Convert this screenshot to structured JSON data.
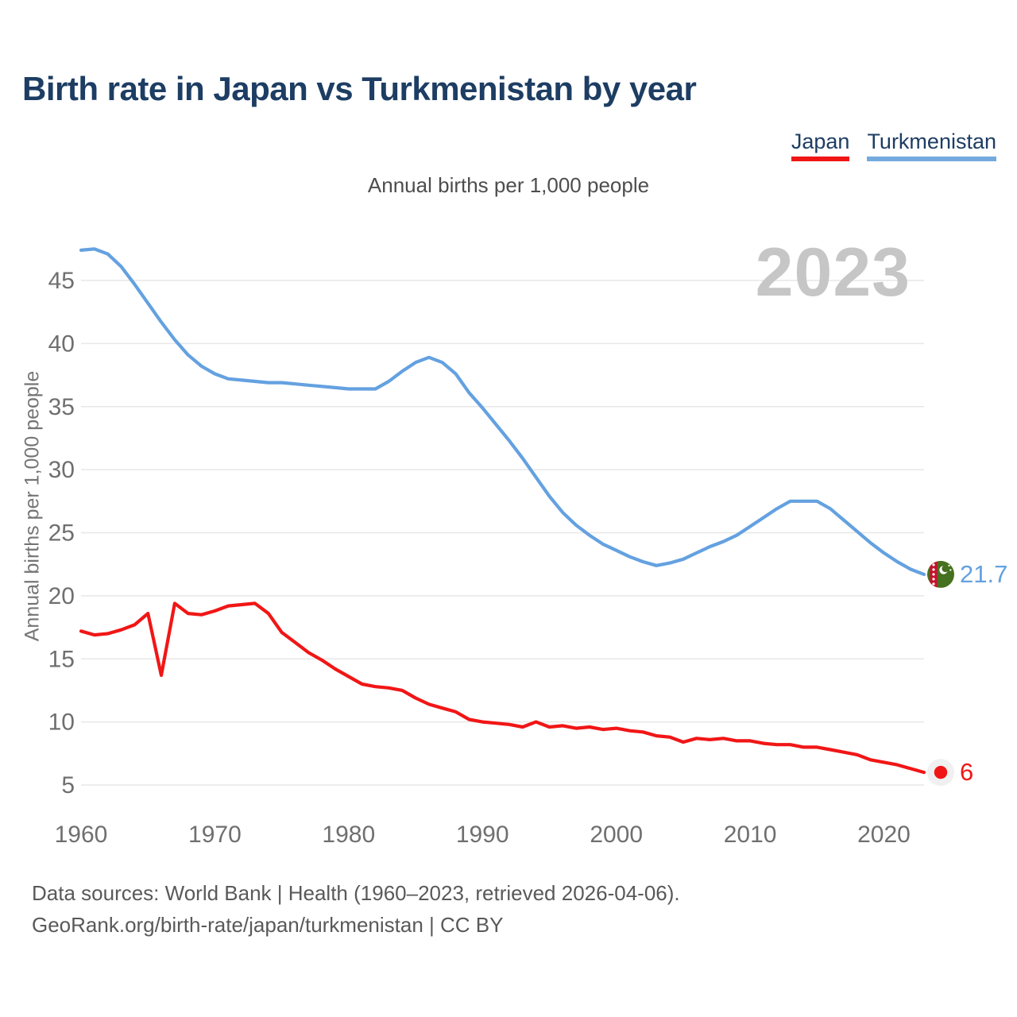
{
  "page": {
    "background": "#ffffff"
  },
  "header": {
    "title": "Birth rate in Japan vs Turkmenistan by year"
  },
  "legend": {
    "items": [
      {
        "label": "Japan",
        "color": "#f11616"
      },
      {
        "label": "Turkmenistan",
        "color": "#74aadd"
      }
    ]
  },
  "subtitle": "Annual births per 1,000 people",
  "watermark": "2023",
  "footer": {
    "line1": "Data sources: World Bank | Health (1960–2023, retrieved 2026-04-06).",
    "line2": "GeoRank.org/birth-rate/japan/turkmenistan | CC BY"
  },
  "chart_data": {
    "type": "line",
    "title": "Birth rate in Japan vs Turkmenistan by year",
    "subtitle": "Annual births per 1,000 people",
    "xlabel": "",
    "ylabel": "Annual births per 1,000 people",
    "ylim": [
      5,
      47.5
    ],
    "grid": "horizontal",
    "legend_position": "top-right",
    "y_ticks": [
      5,
      10,
      15,
      20,
      25,
      30,
      35,
      40,
      45
    ],
    "x_ticks": [
      1960,
      1970,
      1980,
      1990,
      2000,
      2010,
      2020
    ],
    "x": [
      1960,
      1961,
      1962,
      1963,
      1964,
      1965,
      1966,
      1967,
      1968,
      1969,
      1970,
      1971,
      1972,
      1973,
      1974,
      1975,
      1976,
      1977,
      1978,
      1979,
      1980,
      1981,
      1982,
      1983,
      1984,
      1985,
      1986,
      1987,
      1988,
      1989,
      1990,
      1991,
      1992,
      1993,
      1994,
      1995,
      1996,
      1997,
      1998,
      1999,
      2000,
      2001,
      2002,
      2003,
      2004,
      2005,
      2006,
      2007,
      2008,
      2009,
      2010,
      2011,
      2012,
      2013,
      2014,
      2015,
      2016,
      2017,
      2018,
      2019,
      2020,
      2021,
      2022,
      2023
    ],
    "series": [
      {
        "name": "Japan",
        "color": "#f11616",
        "flag": "japan",
        "end_label": "6",
        "values": [
          17.2,
          16.9,
          17.0,
          17.3,
          17.7,
          18.6,
          13.7,
          19.4,
          18.6,
          18.5,
          18.8,
          19.2,
          19.3,
          19.4,
          18.6,
          17.1,
          16.3,
          15.5,
          14.9,
          14.2,
          13.6,
          13.0,
          12.8,
          12.7,
          12.5,
          11.9,
          11.4,
          11.1,
          10.8,
          10.2,
          10.0,
          9.9,
          9.8,
          9.6,
          10.0,
          9.6,
          9.7,
          9.5,
          9.6,
          9.4,
          9.5,
          9.3,
          9.2,
          8.9,
          8.8,
          8.4,
          8.7,
          8.6,
          8.7,
          8.5,
          8.5,
          8.3,
          8.2,
          8.2,
          8.0,
          8.0,
          7.8,
          7.6,
          7.4,
          7.0,
          6.8,
          6.6,
          6.3,
          6.0
        ]
      },
      {
        "name": "Turkmenistan",
        "color": "#64a1e0",
        "flag": "turkmenistan",
        "end_label": "21.7",
        "values": [
          47.4,
          47.5,
          47.1,
          46.1,
          44.7,
          43.2,
          41.7,
          40.3,
          39.1,
          38.2,
          37.6,
          37.2,
          37.1,
          37.0,
          36.9,
          36.9,
          36.8,
          36.7,
          36.6,
          36.5,
          36.4,
          36.4,
          36.4,
          37.0,
          37.8,
          38.5,
          38.9,
          38.5,
          37.6,
          36.1,
          34.9,
          33.6,
          32.3,
          30.9,
          29.4,
          27.9,
          26.6,
          25.6,
          24.8,
          24.1,
          23.6,
          23.1,
          22.7,
          22.4,
          22.6,
          22.9,
          23.4,
          23.9,
          24.3,
          24.8,
          25.5,
          26.2,
          26.9,
          27.5,
          27.5,
          27.5,
          26.9,
          26.0,
          25.1,
          24.2,
          23.4,
          22.7,
          22.1,
          21.7
        ]
      }
    ]
  }
}
